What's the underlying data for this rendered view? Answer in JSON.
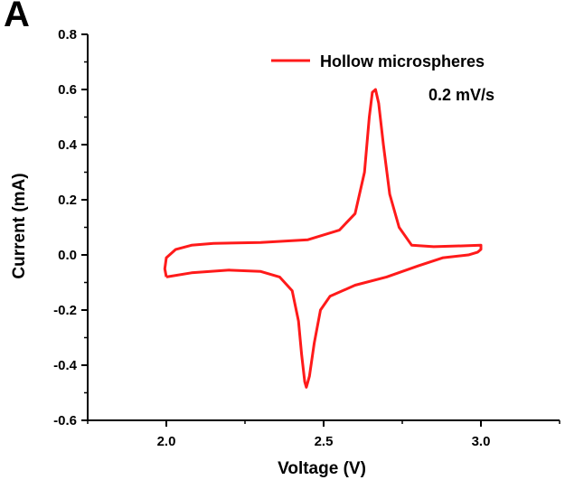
{
  "panel_label": "A",
  "chart_data": {
    "type": "line",
    "title": "",
    "xlabel": "Voltage (V)",
    "ylabel": "Current (mA)",
    "xlim": [
      1.75,
      3.25
    ],
    "ylim": [
      -0.6,
      0.8
    ],
    "xticks": [
      2.0,
      2.5,
      3.0
    ],
    "xtick_labels": [
      "2.0",
      "2.5",
      "3.0"
    ],
    "yticks": [
      -0.6,
      -0.4,
      -0.2,
      0.0,
      0.2,
      0.4,
      0.6,
      0.8
    ],
    "ytick_labels": [
      "-0.6",
      "-0.4",
      "-0.2",
      "0.0",
      "0.2",
      "0.4",
      "0.6",
      "0.8"
    ],
    "grid": false,
    "legend_position": "top-right",
    "annotations": [
      "0.2 mV/s"
    ],
    "series": [
      {
        "name": "Hollow microspheres",
        "color": "#ff1a1a",
        "points": [
          [
            2.0,
            -0.08
          ],
          [
            2.08,
            -0.065
          ],
          [
            2.2,
            -0.055
          ],
          [
            2.3,
            -0.06
          ],
          [
            2.36,
            -0.08
          ],
          [
            2.4,
            -0.13
          ],
          [
            2.42,
            -0.24
          ],
          [
            2.43,
            -0.36
          ],
          [
            2.44,
            -0.46
          ],
          [
            2.445,
            -0.48
          ],
          [
            2.455,
            -0.44
          ],
          [
            2.47,
            -0.32
          ],
          [
            2.49,
            -0.2
          ],
          [
            2.52,
            -0.15
          ],
          [
            2.6,
            -0.11
          ],
          [
            2.7,
            -0.08
          ],
          [
            2.8,
            -0.04
          ],
          [
            2.88,
            -0.01
          ],
          [
            2.96,
            0.0
          ],
          [
            2.99,
            0.01
          ],
          [
            3.0,
            0.02
          ],
          [
            3.0,
            0.035
          ],
          [
            2.95,
            0.033
          ],
          [
            2.85,
            0.03
          ],
          [
            2.78,
            0.035
          ],
          [
            2.74,
            0.1
          ],
          [
            2.71,
            0.22
          ],
          [
            2.69,
            0.4
          ],
          [
            2.675,
            0.55
          ],
          [
            2.665,
            0.6
          ],
          [
            2.655,
            0.59
          ],
          [
            2.645,
            0.5
          ],
          [
            2.63,
            0.3
          ],
          [
            2.6,
            0.15
          ],
          [
            2.55,
            0.09
          ],
          [
            2.45,
            0.055
          ],
          [
            2.3,
            0.045
          ],
          [
            2.15,
            0.042
          ],
          [
            2.08,
            0.035
          ],
          [
            2.03,
            0.02
          ],
          [
            2.0,
            -0.01
          ],
          [
            1.995,
            -0.05
          ],
          [
            2.0,
            -0.08
          ]
        ]
      }
    ]
  }
}
